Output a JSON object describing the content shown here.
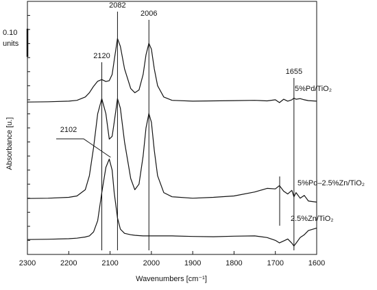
{
  "chart_data": {
    "type": "line",
    "x_label": "Wavenumbers [cm⁻¹]",
    "y_label": "Absorbance [u.]",
    "x": [
      2300,
      2250,
      2200,
      2180,
      2160,
      2150,
      2140,
      2130,
      2120,
      2110,
      2102,
      2095,
      2090,
      2082,
      2075,
      2065,
      2050,
      2040,
      2030,
      2020,
      2013,
      2006,
      2000,
      1993,
      1985,
      1970,
      1950,
      1900,
      1850,
      1800,
      1750,
      1720,
      1700,
      1690,
      1680,
      1670,
      1660,
      1655,
      1650,
      1640,
      1630,
      1620,
      1600
    ],
    "series": [
      {
        "name": "5%Pd/TiO₂",
        "color": "#111111",
        "values": [
          0.542,
          0.543,
          0.545,
          0.548,
          0.56,
          0.575,
          0.598,
          0.616,
          0.622,
          0.615,
          0.618,
          0.64,
          0.69,
          0.768,
          0.74,
          0.66,
          0.59,
          0.575,
          0.585,
          0.64,
          0.71,
          0.751,
          0.73,
          0.66,
          0.6,
          0.56,
          0.548,
          0.545,
          0.546,
          0.547,
          0.548,
          0.546,
          0.55,
          0.54,
          0.552,
          0.545,
          0.55,
          0.556,
          0.552,
          0.554,
          0.55,
          0.547,
          0.545
        ]
      },
      {
        "name": "5%Pd–2.5%Zn/TiO₂",
        "color": "#111111",
        "values": [
          0.199,
          0.2,
          0.203,
          0.208,
          0.23,
          0.28,
          0.38,
          0.5,
          0.554,
          0.5,
          0.41,
          0.42,
          0.47,
          0.554,
          0.52,
          0.4,
          0.27,
          0.23,
          0.25,
          0.35,
          0.45,
          0.501,
          0.47,
          0.37,
          0.28,
          0.22,
          0.205,
          0.2,
          0.203,
          0.208,
          0.222,
          0.235,
          0.233,
          0.245,
          0.225,
          0.215,
          0.228,
          0.205,
          0.22,
          0.2,
          0.21,
          0.19,
          0.186
        ]
      },
      {
        "name": "2.5%Zn/TiO₂",
        "color": "#111111",
        "values": [
          0.053,
          0.054,
          0.056,
          0.058,
          0.062,
          0.066,
          0.08,
          0.12,
          0.22,
          0.31,
          0.339,
          0.3,
          0.22,
          0.13,
          0.09,
          0.075,
          0.07,
          0.068,
          0.067,
          0.066,
          0.066,
          0.066,
          0.066,
          0.066,
          0.066,
          0.066,
          0.066,
          0.064,
          0.063,
          0.065,
          0.066,
          0.06,
          0.05,
          0.041,
          0.048,
          0.055,
          0.04,
          0.03,
          0.04,
          0.06,
          0.07,
          0.085,
          0.094
        ]
      }
    ],
    "annotations": [
      {
        "label": "2120",
        "x": 2120
      },
      {
        "label": "2082",
        "x": 2082
      },
      {
        "label": "2006",
        "x": 2006
      },
      {
        "label": "1655",
        "x": 1655
      },
      {
        "label": "2102",
        "x": 2102
      }
    ],
    "scale_bar": {
      "value": 0.1,
      "label": "0.10"
    },
    "scale_unit": "units",
    "xlim": [
      2300,
      1600
    ],
    "xticks": [
      2300,
      2200,
      2100,
      2000,
      1900,
      1800,
      1700,
      1600
    ],
    "ylim": [
      0,
      0.9
    ],
    "yticks": [
      0.05,
      0.1,
      0.15,
      0.2,
      0.25,
      0.3,
      0.35,
      0.4,
      0.45,
      0.5,
      0.55,
      0.6,
      0.65,
      0.7,
      0.75,
      0.8,
      0.85
    ],
    "grid": false
  }
}
